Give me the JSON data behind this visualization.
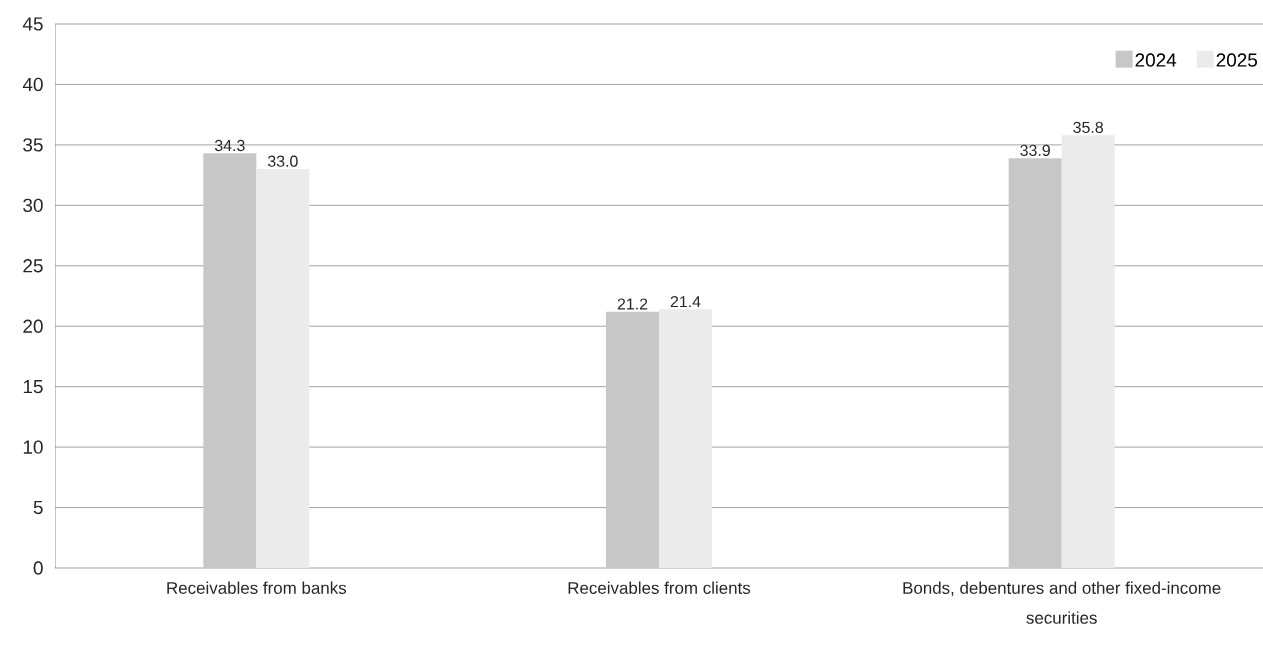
{
  "chart_data": {
    "type": "bar",
    "categories": [
      "Receivables from banks",
      "Receivables from clients",
      "Bonds, debentures and other fixed-income securities"
    ],
    "series": [
      {
        "name": "2024",
        "color": "#c6c7c6",
        "values": [
          34.3,
          21.2,
          33.9
        ],
        "value_labels": [
          "34.3",
          "21.2",
          "33.9"
        ]
      },
      {
        "name": "2025",
        "color": "#ebebeb",
        "values": [
          33.0,
          21.4,
          35.8
        ],
        "value_labels": [
          "33.0",
          "21.4",
          "35.8"
        ]
      }
    ],
    "ylim": [
      0,
      45
    ],
    "yticks": [
      0,
      5,
      10,
      15,
      20,
      25,
      30,
      35,
      40,
      45
    ],
    "grid": "y",
    "legend": "top right"
  }
}
